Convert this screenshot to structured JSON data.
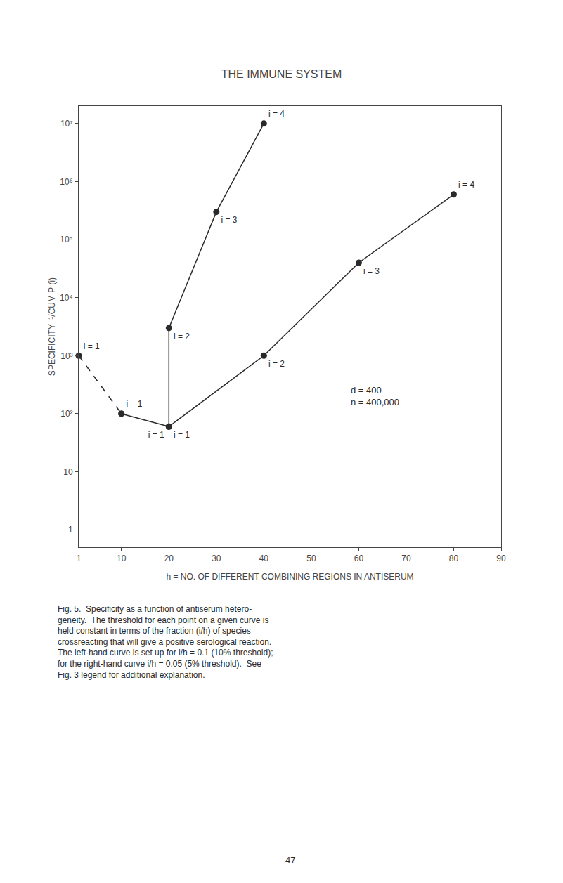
{
  "chart_data": {
    "type": "line",
    "title": "THE IMMUNE SYSTEM",
    "xlabel": "h = NO. OF DIFFERENT COMBINING REGIONS IN ANTISERUM",
    "ylabel": "SPECIFICITY  ¹/CUM P (i)",
    "log": "y",
    "grid": false,
    "xlim": [
      1,
      90
    ],
    "xticks": [
      1,
      10,
      20,
      30,
      40,
      50,
      60,
      70,
      80,
      90
    ],
    "ylim": [
      0.5,
      20000000
    ],
    "yticks": [
      1,
      10,
      {
        "value": 100,
        "label": "10²"
      },
      {
        "value": 1000,
        "label": "10³"
      },
      {
        "value": 10000,
        "label": "10⁴"
      },
      {
        "value": 100000,
        "label": "10⁵"
      },
      {
        "value": 1000000,
        "label": "10⁶"
      },
      {
        "value": 10000000,
        "label": "10⁷"
      }
    ],
    "series": [
      {
        "x": [
          1,
          10
        ],
        "values": [
          1000,
          100
        ],
        "line_style": "dashed",
        "marker": "circle",
        "color": "#2a2a2a",
        "value_labels": [
          "i = 1",
          "i = 1"
        ]
      },
      {
        "x": [
          10,
          20,
          20,
          30,
          40
        ],
        "values": [
          100,
          60,
          3000,
          300000,
          10000000
        ],
        "line_style": "solid",
        "marker": "circle",
        "color": "#2a2a2a",
        "value_labels": [
          null,
          "i = 1",
          "i = 2",
          "i = 3",
          "i = 4"
        ]
      },
      {
        "x": [
          20,
          40,
          60,
          80
        ],
        "values": [
          60,
          1000,
          40000,
          600000
        ],
        "line_style": "solid",
        "marker": "circle",
        "color": "#2a2a2a",
        "value_labels": [
          "i = 1",
          "i = 2",
          "i = 3",
          "i = 4"
        ]
      }
    ],
    "annotations": [
      {
        "text": "d = 400\nn = 400,000"
      }
    ],
    "caption": "Fig. 5.  Specificity as a function of antiserum hetero-\ngeneity.  The threshold for each point on a given curve is\nheld constant in terms of the fraction (i/h) of species\ncrossreacting that will give a positive serological reaction.\nThe left-hand curve is set up for i/h = 0.1 (10% threshold);\nfor the right-hand curve i/h = 0.05 (5% threshold).  See\nFig. 3 legend for additional explanation.",
    "page_number": "47"
  }
}
